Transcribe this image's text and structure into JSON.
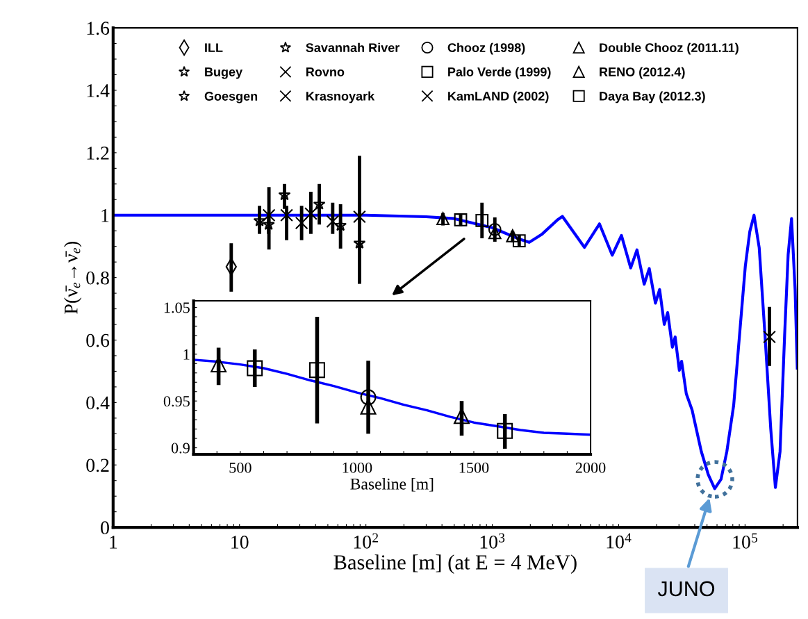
{
  "chart_data": [
    {
      "type": "scatter",
      "xlabel": "Baseline [m] (at E = 4 MeV)",
      "ylabel": "P(ν̄$_{e}$→ν̄$_{e}$)",
      "log": "x",
      "legend": "top",
      "xlim": [
        1,
        260000
      ],
      "xticks": [
        1,
        {
          "value": 2,
          "label": null
        },
        {
          "value": 3,
          "label": null
        },
        {
          "value": 4,
          "label": null
        },
        {
          "value": 5,
          "label": null
        },
        {
          "value": 6,
          "label": null
        },
        {
          "value": 7,
          "label": null
        },
        {
          "value": 8,
          "label": null
        },
        {
          "value": 9,
          "label": null
        },
        10,
        {
          "value": 20,
          "label": null
        },
        {
          "value": 30,
          "label": null
        },
        {
          "value": 40,
          "label": null
        },
        {
          "value": 50,
          "label": null
        },
        {
          "value": 60,
          "label": null
        },
        {
          "value": 70,
          "label": null
        },
        {
          "value": 80,
          "label": null
        },
        {
          "value": 90,
          "label": null
        },
        {
          "value": 100,
          "label": "10$^{2}$"
        },
        {
          "value": 200,
          "label": null
        },
        {
          "value": 300,
          "label": null
        },
        {
          "value": 400,
          "label": null
        },
        {
          "value": 500,
          "label": null
        },
        {
          "value": 600,
          "label": null
        },
        {
          "value": 700,
          "label": null
        },
        {
          "value": 800,
          "label": null
        },
        {
          "value": 900,
          "label": null
        },
        {
          "value": 1000,
          "label": "10$^{3}$"
        },
        {
          "value": 2000,
          "label": null
        },
        {
          "value": 3000,
          "label": null
        },
        {
          "value": 4000,
          "label": null
        },
        {
          "value": 5000,
          "label": null
        },
        {
          "value": 6000,
          "label": null
        },
        {
          "value": 7000,
          "label": null
        },
        {
          "value": 8000,
          "label": null
        },
        {
          "value": 9000,
          "label": null
        },
        {
          "value": 10000,
          "label": "10$^{4}$"
        },
        {
          "value": 20000,
          "label": null
        },
        {
          "value": 30000,
          "label": null
        },
        {
          "value": 40000,
          "label": null
        },
        {
          "value": 50000,
          "label": null
        },
        {
          "value": 60000,
          "label": null
        },
        {
          "value": 70000,
          "label": null
        },
        {
          "value": 80000,
          "label": null
        },
        {
          "value": 90000,
          "label": null
        },
        {
          "value": 100000,
          "label": "10$^{5}$"
        },
        {
          "value": 200000,
          "label": null
        }
      ],
      "ylim": [
        0,
        1.6
      ],
      "yticks": [
        0,
        {
          "value": 0.05,
          "label": null
        },
        {
          "value": 0.1,
          "label": null
        },
        {
          "value": 0.15,
          "label": null
        },
        0.2,
        {
          "value": 0.25,
          "label": null
        },
        {
          "value": 0.3,
          "label": null
        },
        {
          "value": 0.35,
          "label": null
        },
        0.4,
        {
          "value": 0.45,
          "label": null
        },
        {
          "value": 0.5,
          "label": null
        },
        {
          "value": 0.55,
          "label": null
        },
        0.6,
        {
          "value": 0.65,
          "label": null
        },
        {
          "value": 0.7,
          "label": null
        },
        {
          "value": 0.75,
          "label": null
        },
        0.8,
        {
          "value": 0.85,
          "label": null
        },
        {
          "value": 0.9,
          "label": null
        },
        {
          "value": 0.95,
          "label": null
        },
        1,
        {
          "value": 1.05,
          "label": null
        },
        {
          "value": 1.1,
          "label": null
        },
        {
          "value": 1.15,
          "label": null
        },
        1.2,
        {
          "value": 1.25,
          "label": null
        },
        {
          "value": 1.3,
          "label": null
        },
        {
          "value": 1.35,
          "label": null
        },
        1.4,
        {
          "value": 1.45,
          "label": null
        },
        {
          "value": 1.5,
          "label": null
        },
        {
          "value": 1.55,
          "label": null
        },
        1.6
      ],
      "annotations": [
        "JUNO"
      ],
      "series": [
        {
          "type": "line",
          "color": "#0000ff",
          "x": [
            1,
            100,
            300,
            500,
            1000,
            1600,
            1960,
            2455,
            3280,
            3589,
            5358,
            7047,
            8892,
            10520,
            12450,
            13960,
            15920,
            17460,
            19540,
            21090,
            22960,
            24430,
            26610,
            27990,
            30200,
            31480,
            34280,
            38110,
            41400,
            45080,
            51170,
            57540,
            64570,
            71780,
            81280,
            90360,
            100500,
            109100,
            117800,
            129400,
            143900,
            159600,
            173800,
            189200,
            205600,
            219300,
            233300,
            248900,
            259000
          ],
          "values": [
            1.0,
            1.0,
            0.995,
            0.989,
            0.96,
            0.925,
            0.913,
            0.938,
            0.985,
            0.996,
            0.897,
            0.972,
            0.872,
            0.935,
            0.831,
            0.889,
            0.779,
            0.829,
            0.718,
            0.762,
            0.65,
            0.688,
            0.577,
            0.61,
            0.503,
            0.532,
            0.428,
            0.376,
            0.31,
            0.243,
            0.169,
            0.124,
            0.154,
            0.243,
            0.391,
            0.614,
            0.837,
            0.948,
            1.0,
            0.896,
            0.614,
            0.317,
            0.128,
            0.243,
            0.614,
            0.874,
            0.989,
            0.762,
            0.51
          ]
        },
        {
          "name": "ILL",
          "marker": "diamond",
          "color": "#000000",
          "x": [
            8.6
          ],
          "values": [
            0.835
          ],
          "errors": [
            [
              0.755,
              0.91
            ]
          ]
        },
        {
          "name": "Bugey",
          "marker": "star",
          "color": "#000000",
          "x": [
            14.4,
            89
          ],
          "values": [
            0.982,
            0.91
          ],
          "errors": [
            [
              0.94,
              1.03
            ],
            [
              0.78,
              1.04
            ]
          ]
        },
        {
          "name": "Goesgen",
          "marker": "star",
          "color": "#000000",
          "x": [
            42.8,
            63
          ],
          "values": [
            1.035,
            0.967
          ],
          "errors": [
            [
              0.97,
              1.1
            ],
            [
              0.893,
              1.035
            ]
          ]
        },
        {
          "name": "Savannah River",
          "marker": "star",
          "color": "#000000",
          "x": [
            17,
            22.7
          ],
          "values": [
            0.97,
            1.065
          ],
          "errors": [
            [
              0.94,
              1.0
            ],
            [
              1.02,
              1.1
            ]
          ]
        },
        {
          "name": "Rovno",
          "marker": "cross",
          "color": "#000000",
          "x": [
            17.1,
            23.6
          ],
          "values": [
            1.0,
            1.0
          ],
          "errors": [
            [
              0.89,
              1.09
            ],
            [
              0.92,
              1.03
            ]
          ]
        },
        {
          "name": "Krasnoyark",
          "marker": "cross",
          "color": "#000000",
          "x": [
            31,
            36.7,
            54.6,
            89
          ],
          "values": [
            0.975,
            1.005,
            0.98,
            0.995
          ],
          "errors": [
            [
              0.92,
              1.03
            ],
            [
              0.94,
              1.075
            ],
            [
              0.94,
              1.04
            ],
            [
              0.786,
              1.19
            ]
          ]
        },
        {
          "name": "Chooz (1998)",
          "marker": "circle",
          "color": "#000000",
          "x": [
            1048
          ],
          "values": [
            0.954
          ],
          "errors": [
            [
              0.915,
              0.993
            ]
          ]
        },
        {
          "name": "Palo Verde (1999)",
          "marker": "square",
          "color": "#000000",
          "x": [
            829
          ],
          "values": [
            0.983
          ],
          "errors": [
            [
              0.926,
              1.04
            ]
          ]
        },
        {
          "name": "KamLAND (2002)",
          "marker": "cross",
          "color": "#000000",
          "x": [
            156000
          ],
          "values": [
            0.61
          ],
          "errors": [
            [
              0.517,
              0.706
            ]
          ]
        },
        {
          "name": "Double Chooz (2011.11)",
          "marker": "triangle",
          "color": "#000000",
          "x": [
            1048
          ],
          "values": [
            0.944
          ],
          "errors": [
            null
          ]
        },
        {
          "name": "RENO (2012.4)",
          "marker": "triangle",
          "color": "#000000",
          "x": [
            407,
            1448
          ],
          "values": [
            0.989,
            0.934
          ],
          "errors": [
            [
              0.967,
              1.007
            ],
            [
              0.913,
              0.95
            ]
          ]
        },
        {
          "name": "Daya Bay (2012.3)",
          "marker": "square",
          "color": "#000000",
          "x": [
            562,
            1633
          ],
          "values": [
            0.985,
            0.918
          ],
          "errors": [
            [
              0.965,
              1.005
            ],
            [
              0.899,
              0.936
            ]
          ]
        }
      ]
    },
    {
      "type": "scatter",
      "xlabel": "Baseline [m]",
      "xlim": [
        300,
        2000
      ],
      "xticks": [
        {
          "value": 300,
          "label": null
        },
        {
          "value": 400,
          "label": null
        },
        500,
        {
          "value": 600,
          "label": null
        },
        {
          "value": 700,
          "label": null
        },
        {
          "value": 800,
          "label": null
        },
        {
          "value": 900,
          "label": null
        },
        1000,
        {
          "value": 1100,
          "label": null
        },
        {
          "value": 1200,
          "label": null
        },
        {
          "value": 1300,
          "label": null
        },
        {
          "value": 1400,
          "label": null
        },
        1500,
        {
          "value": 1600,
          "label": null
        },
        {
          "value": 1700,
          "label": null
        },
        {
          "value": 1800,
          "label": null
        },
        {
          "value": 1900,
          "label": null
        },
        2000
      ],
      "ylim": [
        0.893,
        1.057
      ],
      "yticks": [
        0.9,
        {
          "value": 0.91,
          "label": null
        },
        {
          "value": 0.92,
          "label": null
        },
        {
          "value": 0.93,
          "label": null
        },
        {
          "value": 0.94,
          "label": null
        },
        0.95,
        {
          "value": 0.96,
          "label": null
        },
        {
          "value": 0.97,
          "label": null
        },
        {
          "value": 0.98,
          "label": null
        },
        {
          "value": 0.99,
          "label": null
        },
        1,
        {
          "value": 1.01,
          "label": null
        },
        {
          "value": 1.02,
          "label": null
        },
        {
          "value": 1.03,
          "label": null
        },
        {
          "value": 1.04,
          "label": null
        },
        1.05
      ],
      "series": [
        {
          "type": "line",
          "color": "#0000ff",
          "x": [
            300,
            400,
            500,
            600,
            700,
            800,
            900,
            1000,
            1100,
            1200,
            1300,
            1400,
            1500,
            1600,
            1700,
            1800,
            1900,
            2000
          ],
          "values": [
            0.994,
            0.992,
            0.989,
            0.985,
            0.979,
            0.972,
            0.966,
            0.959,
            0.953,
            0.946,
            0.94,
            0.933,
            0.927,
            0.923,
            0.919,
            0.916,
            0.915,
            0.914
          ]
        },
        {
          "marker": "triangle",
          "color": "#000000",
          "x": [
            407,
            1448
          ],
          "values": [
            0.989,
            0.934
          ],
          "errors": [
            [
              0.967,
              1.007
            ],
            [
              0.913,
              0.95
            ]
          ]
        },
        {
          "marker": "square",
          "color": "#000000",
          "x": [
            562,
            1633
          ],
          "values": [
            0.985,
            0.918
          ],
          "errors": [
            [
              0.965,
              1.005
            ],
            [
              0.899,
              0.936
            ]
          ]
        },
        {
          "marker": "square",
          "color": "#000000",
          "x": [
            829
          ],
          "values": [
            0.983
          ],
          "errors": [
            [
              0.926,
              1.04
            ]
          ]
        },
        {
          "marker": "circle",
          "color": "#000000",
          "x": [
            1048
          ],
          "values": [
            0.954
          ],
          "errors": [
            [
              0.915,
              0.993
            ]
          ]
        },
        {
          "marker": "triangle",
          "color": "#000000",
          "x": [
            1048
          ],
          "values": [
            0.944
          ],
          "errors": [
            null
          ]
        }
      ]
    }
  ]
}
